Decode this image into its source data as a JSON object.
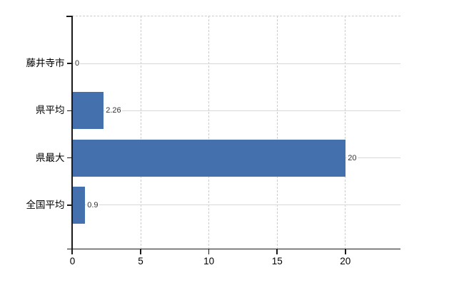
{
  "chart_data": {
    "type": "bar",
    "orientation": "horizontal",
    "title": "",
    "categories": [
      "藤井寺市",
      "県平均",
      "県最大",
      "全国平均"
    ],
    "values": [
      0,
      2.26,
      20,
      0.9
    ],
    "value_labels": [
      "0",
      "2.26",
      "20",
      "0.9"
    ],
    "series": [
      {
        "name": "",
        "values": [
          0,
          2.26,
          20,
          0.9
        ]
      }
    ],
    "x_ticks": [
      0,
      5,
      10,
      15,
      20
    ],
    "x_tick_labels": [
      "0",
      "5",
      "10",
      "15",
      "20"
    ],
    "xlim": [
      0,
      24
    ],
    "xlabel": "",
    "ylabel": "",
    "legend": "none",
    "grid": {
      "horizontal": "solid",
      "vertical": "dashed",
      "top_border": "dashed"
    },
    "colors": {
      "bar": "#4471ad",
      "axis": "#1a1a1a",
      "h_gridline": "#d4dad4",
      "v_gridline": "#cccccc",
      "category_label": "#000000",
      "value_label": "#333333",
      "background": "#ffffff"
    }
  }
}
